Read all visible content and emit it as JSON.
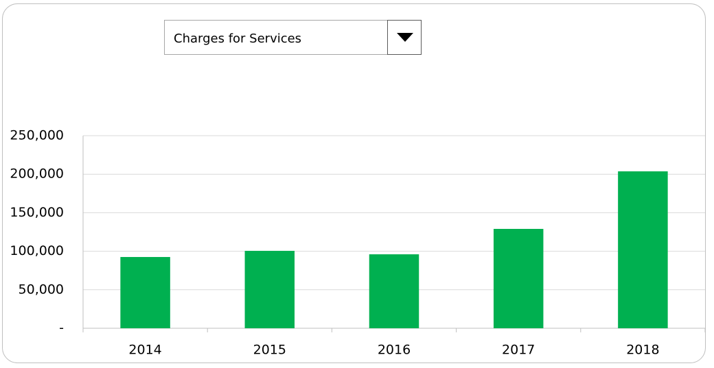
{
  "dropdown": {
    "selected": "Charges for Services"
  },
  "chart_data": {
    "type": "bar",
    "categories": [
      "2014",
      "2015",
      "2016",
      "2017",
      "2018"
    ],
    "values": [
      92500,
      100500,
      96000,
      129000,
      203700
    ],
    "color": "#00b050",
    "ylim": [
      0,
      250000
    ],
    "yticks": [
      {
        "value": 0,
        "label": "-"
      },
      {
        "value": 50000,
        "label": "50,000"
      },
      {
        "value": 100000,
        "label": "100,000"
      },
      {
        "value": 150000,
        "label": "150,000"
      },
      {
        "value": 200000,
        "label": "200,000"
      },
      {
        "value": 250000,
        "label": "250,000"
      }
    ],
    "grid": true
  }
}
